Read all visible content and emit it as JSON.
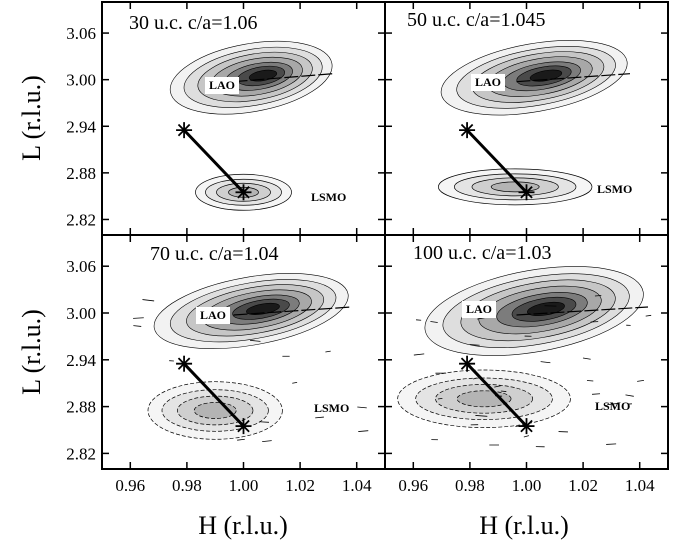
{
  "chart_data": {
    "type": "heatmap",
    "description_of_marks": "reciprocal space maps (contour), LAO substrate and LSMO film peaks with relaxation line",
    "xlabel": "H (r.l.u.)",
    "ylabel": "L (r.l.u.)",
    "xlim": [
      0.95,
      1.05
    ],
    "ylim": [
      2.8,
      3.1
    ],
    "xticks": [
      "0.96",
      "0.98",
      "1.00",
      "1.02",
      "1.04"
    ],
    "yticks": [
      "2.82",
      "2.88",
      "2.94",
      "3.00",
      "3.06"
    ],
    "panels": [
      {
        "title": "30 u.c. c/a=1.06",
        "labels": [
          "LAO",
          "LSMO"
        ],
        "lao_peak": {
          "h": 1.0,
          "l": 3.0
        },
        "lsmo_peak": {
          "h": 1.0,
          "l": 2.855
        },
        "relaxed_point": {
          "h": 0.979,
          "l": 2.935
        },
        "strained_point": {
          "h": 1.0,
          "l": 2.855
        }
      },
      {
        "title": "50 u.c. c/a=1.045",
        "labels": [
          "LAO",
          "LSMO"
        ],
        "lao_peak": {
          "h": 1.0,
          "l": 3.0
        },
        "lsmo_peak": {
          "h": 0.996,
          "l": 2.862
        },
        "relaxed_point": {
          "h": 0.979,
          "l": 2.935
        },
        "strained_point": {
          "h": 1.0,
          "l": 2.855
        }
      },
      {
        "title": "70 u.c. c/a=1.04",
        "labels": [
          "LAO",
          "LSMO"
        ],
        "lao_peak": {
          "h": 1.0,
          "l": 3.0
        },
        "lsmo_peak": {
          "h": 0.99,
          "l": 2.875
        },
        "relaxed_point": {
          "h": 0.979,
          "l": 2.935
        },
        "strained_point": {
          "h": 1.0,
          "l": 2.855
        }
      },
      {
        "title": "100 u.c. c/a=1.03",
        "labels": [
          "LAO",
          "LSMO"
        ],
        "lao_peak": {
          "h": 1.0,
          "l": 3.0
        },
        "lsmo_peak": {
          "h": 0.985,
          "l": 2.89
        },
        "relaxed_point": {
          "h": 0.979,
          "l": 2.935
        },
        "strained_point": {
          "h": 1.0,
          "l": 2.855
        }
      }
    ]
  }
}
